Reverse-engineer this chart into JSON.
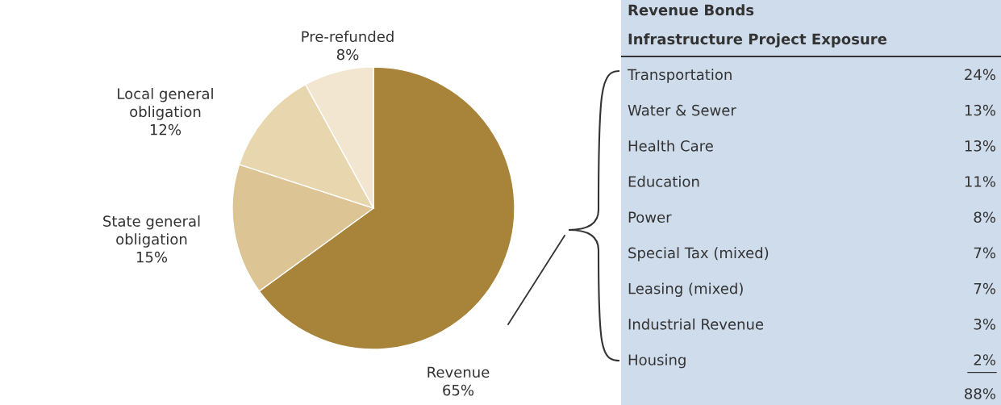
{
  "chart_data": [
    {
      "type": "pie",
      "categories": [
        "Revenue",
        "State general\nobligation",
        "Local general\nobligation",
        "Pre-refunded"
      ],
      "values": [
        65,
        15,
        12,
        8
      ],
      "colors": [
        "#a8843a",
        "#dcc494",
        "#e8d6ae",
        "#f2e6d0"
      ],
      "value_labels": [
        "65%",
        "15%",
        "12%",
        "8%"
      ]
    },
    {
      "type": "other",
      "title": "Revenue Bonds",
      "subtitle": "Infrastructure Project Exposure",
      "categories": [
        "Transportation",
        "Water & Sewer",
        "Health Care",
        "Education",
        "Power",
        "Special Tax (mixed)",
        "Leasing (mixed)",
        "Industrial Revenue",
        "Housing"
      ],
      "value_labels": [
        "24%",
        "13%",
        "13%",
        "11%",
        "8%",
        "7%",
        "7%",
        "3%",
        "2%"
      ],
      "annotations": [
        "88%"
      ]
    }
  ]
}
